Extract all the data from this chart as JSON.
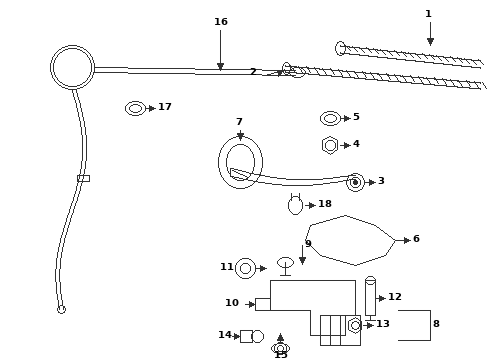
{
  "bg_color": "#ffffff",
  "line_color": "#2a2a2a",
  "figsize": [
    4.89,
    3.6
  ],
  "dpi": 100,
  "xlim": [
    0,
    489
  ],
  "ylim": [
    0,
    360
  ],
  "components": {
    "hose_tube_y1": 68,
    "hose_tube_y2": 74,
    "hose_tube_x1": 120,
    "hose_tube_x2": 310
  }
}
